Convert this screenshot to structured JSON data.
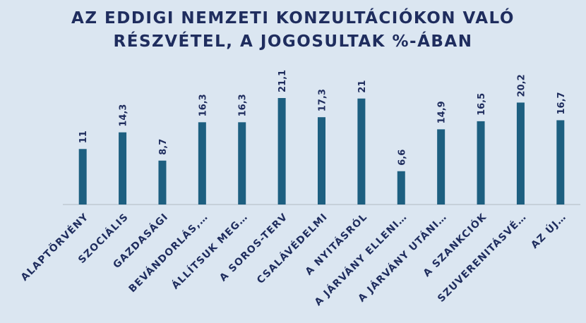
{
  "chart_data": {
    "type": "bar",
    "title": "AZ EDDIGI NEMZETI KONZULTÁCIÓKON VALÓ RÉSZVÉTEL, A JOGOSULTAK %-ÁBAN",
    "categories": [
      "ALAPTÖRVÉNY",
      "SZOCIÁLIS",
      "GAZDASÁGI",
      "BEVÁNDORLÁS,…",
      "ÁLLÍTSUK MEG…",
      "A SOROS-TERV",
      "CSALÁVÉDELMI",
      "A NYITÁSRÓL",
      "A JÁRVÁNY ELLENI…",
      "A JÁRVÁNY UTÁNI…",
      "A  SZANKCIÓK",
      "SZUVERENITÁSVÉ…",
      "AZ ÚJ…"
    ],
    "values": [
      11,
      14.3,
      8.7,
      16.3,
      16.3,
      21.1,
      17.3,
      21,
      6.6,
      14.9,
      16.5,
      20.2,
      16.7
    ],
    "value_labels": [
      "11",
      "14,3",
      "8,7",
      "16,3",
      "16,3",
      "21,1",
      "17,3",
      "21",
      "6,6",
      "14,9",
      "16,5",
      "20,2",
      "16,7"
    ],
    "color": "#1d5f80"
  }
}
